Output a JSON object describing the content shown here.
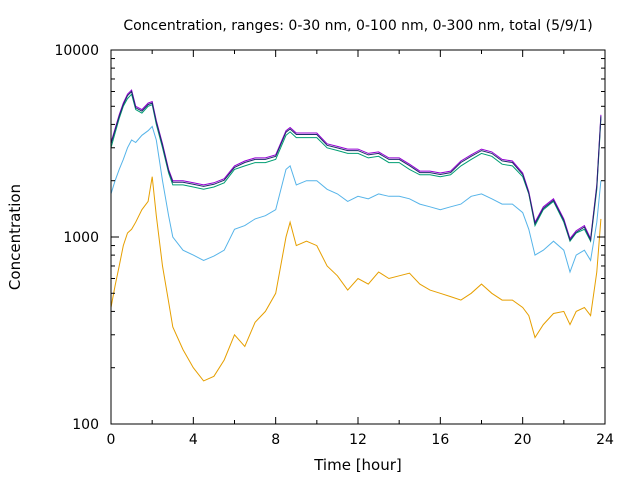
{
  "chart_data": {
    "type": "line",
    "title": "Concentration, ranges: 0-30 nm, 0-100 nm, 0-300 nm, total (5/9/1)",
    "xlabel": "Time [hour]",
    "ylabel": "Concentration",
    "xlim": [
      0,
      24
    ],
    "ylim": [
      100,
      10000
    ],
    "yscale": "log",
    "grid": false,
    "legend": "none",
    "xticks": [
      0,
      4,
      8,
      12,
      16,
      20,
      24
    ],
    "xtick_labels": [
      "0",
      "4",
      "8",
      "12",
      "16",
      "20",
      "24"
    ],
    "yticks": [
      100,
      1000,
      10000
    ],
    "ytick_labels": [
      "100",
      "1000",
      "10000"
    ],
    "colors": {
      "0-30 nm": "#e69f00",
      "0-100 nm": "#56b4e9",
      "0-300 nm": "#009e73",
      "total": "#9400d3",
      "total_dark": "#1f2d6b"
    },
    "series": [
      {
        "x": [
          0,
          0.2,
          0.4,
          0.6,
          0.8,
          1.0,
          1.2,
          1.5,
          1.8,
          2.0,
          2.2,
          2.5,
          2.8,
          3.0,
          3.5,
          4.0,
          4.5,
          5.0,
          5.5,
          6.0,
          6.5,
          7.0,
          7.5,
          8.0,
          8.5,
          8.7,
          9.0,
          9.5,
          10.0,
          10.5,
          11.0,
          11.5,
          12.0,
          12.5,
          13.0,
          13.5,
          14.0,
          14.5,
          15.0,
          15.5,
          16.0,
          16.5,
          17.0,
          17.5,
          18.0,
          18.5,
          19.0,
          19.5,
          20.0,
          20.3,
          20.6,
          21.0,
          21.5,
          22.0,
          22.3,
          22.6,
          23.0,
          23.3,
          23.6,
          23.8
        ],
        "values": [
          420,
          550,
          700,
          900,
          1050,
          1100,
          1200,
          1400,
          1550,
          2100,
          1300,
          700,
          450,
          330,
          250,
          200,
          170,
          180,
          220,
          300,
          260,
          350,
          400,
          500,
          1000,
          1200,
          900,
          950,
          900,
          700,
          620,
          520,
          600,
          560,
          650,
          600,
          620,
          640,
          560,
          520,
          500,
          480,
          460,
          500,
          560,
          500,
          460,
          460,
          420,
          380,
          290,
          340,
          390,
          400,
          340,
          400,
          420,
          380,
          650,
          1250
        ]
      },
      {
        "x": [
          0,
          0.2,
          0.4,
          0.6,
          0.8,
          1.0,
          1.2,
          1.5,
          1.8,
          2.0,
          2.2,
          2.5,
          2.8,
          3.0,
          3.5,
          4.0,
          4.5,
          5.0,
          5.5,
          6.0,
          6.5,
          7.0,
          7.5,
          8.0,
          8.5,
          8.7,
          9.0,
          9.5,
          10.0,
          10.5,
          11.0,
          11.5,
          12.0,
          12.5,
          13.0,
          13.5,
          14.0,
          14.5,
          15.0,
          15.5,
          16.0,
          16.5,
          17.0,
          17.5,
          18.0,
          18.5,
          19.0,
          19.5,
          20.0,
          20.3,
          20.6,
          21.0,
          21.5,
          22.0,
          22.3,
          22.6,
          23.0,
          23.3,
          23.6,
          23.8
        ],
        "values": [
          1700,
          2000,
          2300,
          2600,
          3000,
          3300,
          3200,
          3500,
          3700,
          3900,
          3300,
          2000,
          1300,
          1000,
          850,
          800,
          750,
          790,
          850,
          1100,
          1150,
          1250,
          1300,
          1400,
          2300,
          2400,
          1900,
          2000,
          2000,
          1800,
          1700,
          1550,
          1650,
          1600,
          1700,
          1650,
          1650,
          1600,
          1500,
          1450,
          1400,
          1450,
          1500,
          1650,
          1700,
          1600,
          1500,
          1500,
          1350,
          1100,
          800,
          850,
          950,
          850,
          650,
          800,
          850,
          750,
          1200,
          2000
        ]
      },
      {
        "x": [
          0,
          0.2,
          0.4,
          0.6,
          0.8,
          1.0,
          1.2,
          1.5,
          1.8,
          2.0,
          2.2,
          2.5,
          2.8,
          3.0,
          3.5,
          4.0,
          4.5,
          5.0,
          5.5,
          6.0,
          6.5,
          7.0,
          7.5,
          8.0,
          8.5,
          8.7,
          9.0,
          9.5,
          10.0,
          10.5,
          11.0,
          11.5,
          12.0,
          12.5,
          13.0,
          13.5,
          14.0,
          14.5,
          15.0,
          15.5,
          16.0,
          16.5,
          17.0,
          17.5,
          18.0,
          18.5,
          19.0,
          19.5,
          20.0,
          20.3,
          20.6,
          21.0,
          21.5,
          22.0,
          22.3,
          22.6,
          23.0,
          23.3,
          23.6,
          23.8
        ],
        "values": [
          3000,
          3600,
          4300,
          5000,
          5500,
          5800,
          4800,
          4600,
          5000,
          5100,
          4000,
          3000,
          2200,
          1900,
          1900,
          1850,
          1800,
          1850,
          1950,
          2300,
          2400,
          2500,
          2500,
          2600,
          3500,
          3650,
          3400,
          3400,
          3400,
          3000,
          2900,
          2800,
          2800,
          2650,
          2700,
          2500,
          2500,
          2300,
          2150,
          2150,
          2100,
          2150,
          2400,
          2600,
          2800,
          2700,
          2450,
          2400,
          2100,
          1700,
          1150,
          1400,
          1550,
          1200,
          950,
          1050,
          1100,
          950,
          1800,
          4300
        ]
      },
      {
        "x": [
          0,
          0.2,
          0.4,
          0.6,
          0.8,
          1.0,
          1.2,
          1.5,
          1.8,
          2.0,
          2.2,
          2.5,
          2.8,
          3.0,
          3.5,
          4.0,
          4.5,
          5.0,
          5.5,
          6.0,
          6.5,
          7.0,
          7.5,
          8.0,
          8.5,
          8.7,
          9.0,
          9.5,
          10.0,
          10.5,
          11.0,
          11.5,
          12.0,
          12.5,
          13.0,
          13.5,
          14.0,
          14.5,
          15.0,
          15.5,
          16.0,
          16.5,
          17.0,
          17.5,
          18.0,
          18.5,
          19.0,
          19.5,
          20.0,
          20.3,
          20.6,
          21.0,
          21.5,
          22.0,
          22.3,
          22.6,
          23.0,
          23.3,
          23.6,
          23.8
        ],
        "values": [
          3200,
          3800,
          4500,
          5200,
          5800,
          6100,
          5000,
          4800,
          5200,
          5300,
          4200,
          3150,
          2300,
          2000,
          2000,
          1950,
          1900,
          1950,
          2050,
          2400,
          2550,
          2650,
          2650,
          2750,
          3700,
          3850,
          3600,
          3600,
          3600,
          3150,
          3050,
          2950,
          2950,
          2800,
          2850,
          2650,
          2650,
          2450,
          2250,
          2250,
          2200,
          2250,
          2550,
          2750,
          2950,
          2850,
          2600,
          2550,
          2200,
          1750,
          1200,
          1450,
          1600,
          1250,
          980,
          1080,
          1150,
          980,
          1900,
          4500
        ]
      }
    ]
  }
}
